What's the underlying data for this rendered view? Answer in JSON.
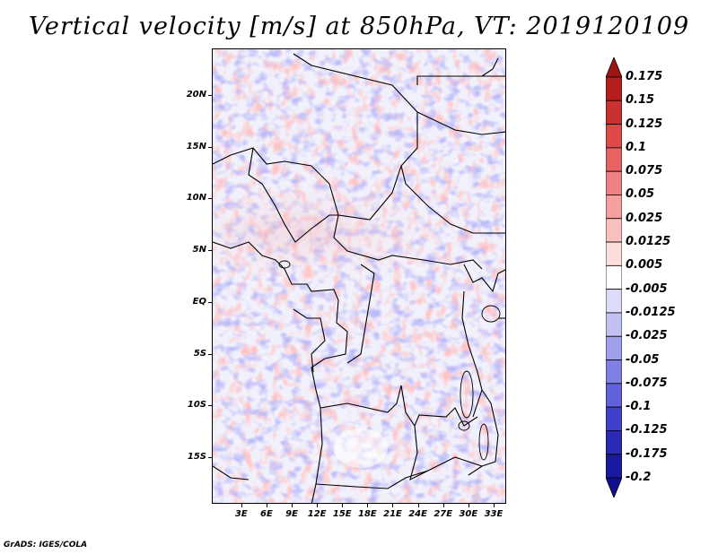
{
  "title": "Vertical velocity [m/s] at 850hPa, VT: 2019120109",
  "map": {
    "lat_range": [
      -19.5,
      24.5
    ],
    "lon_range": [
      -0.5,
      34.5
    ],
    "lat_labels": [
      "20N",
      "15N",
      "10N",
      "5N",
      "EQ",
      "5S",
      "10S",
      "15S"
    ],
    "lat_values": [
      20,
      15,
      10,
      5,
      0,
      -5,
      -10,
      -15
    ],
    "lon_labels": [
      "3E",
      "6E",
      "9E",
      "12E",
      "15E",
      "18E",
      "21E",
      "24E",
      "27E",
      "30E",
      "33E"
    ],
    "lon_values": [
      3,
      6,
      9,
      12,
      15,
      18,
      21,
      24,
      27,
      30,
      33
    ]
  },
  "colorbar": {
    "labels": [
      "0.175",
      "0.15",
      "0.125",
      "0.1",
      "0.075",
      "0.05",
      "0.025",
      "0.0125",
      "0.005",
      "-0.005",
      "-0.0125",
      "-0.025",
      "-0.05",
      "-0.075",
      "-0.1",
      "-0.125",
      "-0.175",
      "-0.2"
    ],
    "colors": [
      "#a01414",
      "#b41e1e",
      "#c83232",
      "#dc4a4a",
      "#e66464",
      "#ee8282",
      "#f5a0a0",
      "#f9c0c0",
      "#fcdede",
      "#ffffff",
      "#dcdcf8",
      "#c2c2f2",
      "#a0a0ec",
      "#8080e4",
      "#6060d8",
      "#4040c8",
      "#2a2ab4",
      "#1a1aa0",
      "#10108c"
    ]
  },
  "footer": "GrADS: IGES/COLA"
}
